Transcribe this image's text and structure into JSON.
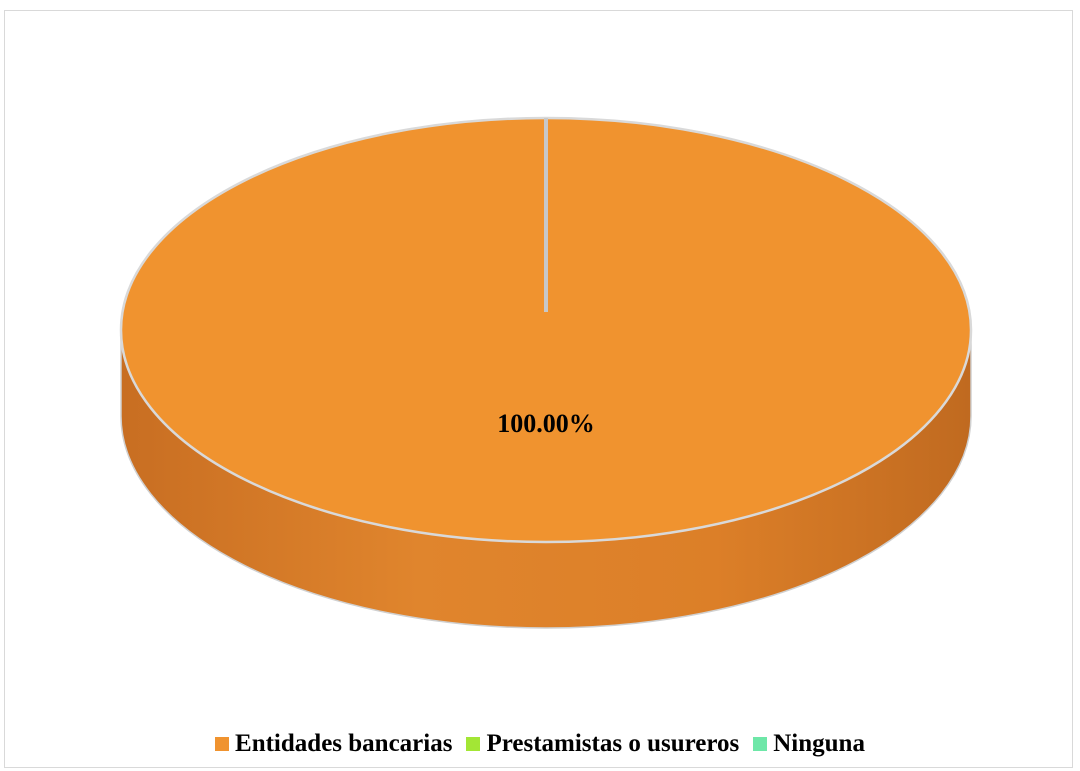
{
  "chart_data": {
    "type": "pie",
    "style": "3d",
    "categories": [
      "Entidades bancarias",
      "Prestamistas o usureros",
      "Ninguna"
    ],
    "values": [
      100.0,
      0.0,
      0.0
    ],
    "data_labels": [
      "100.00%"
    ],
    "colors": [
      "#f0932f",
      "#a3e635",
      "#6ee7a8"
    ],
    "legend_position": "bottom",
    "title": ""
  }
}
